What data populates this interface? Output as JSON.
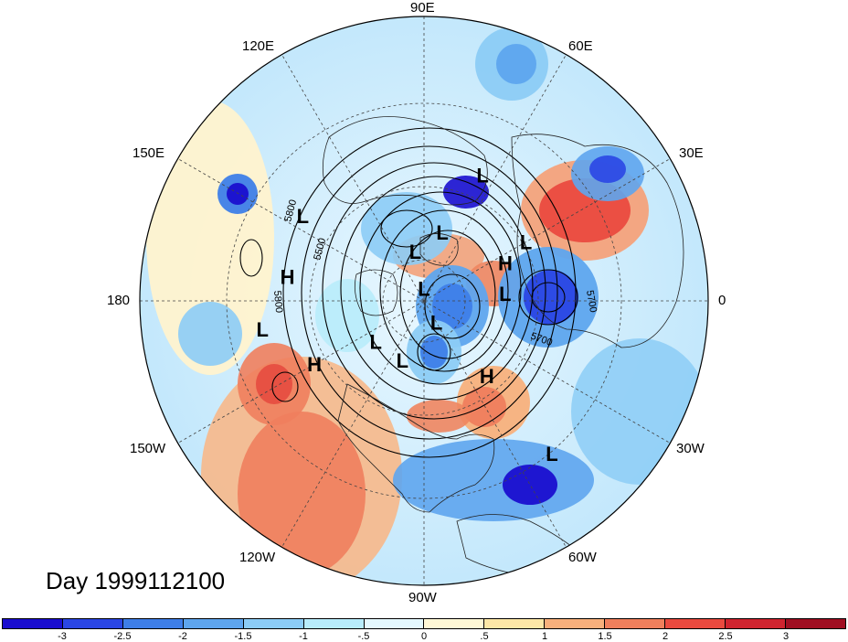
{
  "title": "Day 1999112100",
  "longitude_labels": [
    "90E",
    "60E",
    "30E",
    "0",
    "30W",
    "60W",
    "90W",
    "120W",
    "150W",
    "180",
    "150E",
    "120E"
  ],
  "contour_labels": [
    "5800",
    "5500",
    "5800",
    "5700",
    "5700"
  ],
  "centers": [
    {
      "type": "L",
      "lon": 65,
      "lat": 38
    },
    {
      "type": "L",
      "lon": 30,
      "lat": 45
    },
    {
      "type": "H",
      "lon": 25,
      "lat": 55
    },
    {
      "type": "L",
      "lon": 5,
      "lat": 58
    },
    {
      "type": "L",
      "lon": 75,
      "lat": 62
    },
    {
      "type": "L",
      "lon": 100,
      "lat": 70
    },
    {
      "type": "L",
      "lon": 90,
      "lat": 85
    },
    {
      "type": "L",
      "lon": -60,
      "lat": 80
    },
    {
      "type": "L",
      "lon": -110,
      "lat": 65
    },
    {
      "type": "L",
      "lon": -170,
      "lat": 30
    },
    {
      "type": "L",
      "lon": 145,
      "lat": 35
    },
    {
      "type": "H",
      "lon": 170,
      "lat": 38
    },
    {
      "type": "H",
      "lon": -150,
      "lat": 42
    },
    {
      "type": "H",
      "lon": -50,
      "lat": 52
    },
    {
      "type": "L",
      "lon": -50,
      "lat": 20
    },
    {
      "type": "L",
      "lon": -140,
      "lat": 65
    }
  ],
  "colorbar": {
    "colors": [
      "#1a0ecf",
      "#2a46e4",
      "#3e7ee8",
      "#5ea5ee",
      "#8cccf6",
      "#b8ecfb",
      "#e4f8fe",
      "#fff8d6",
      "#fde7a7",
      "#f8b07c",
      "#f07f5c",
      "#ea4a3f",
      "#d0242f",
      "#a00f22"
    ],
    "ticks": [
      "-3",
      "-2.5",
      "-2",
      "-1.5",
      "-1",
      "-.5",
      "0",
      ".5",
      "1",
      "1.5",
      "2",
      "2.5",
      "3"
    ]
  },
  "colors": {
    "positive": "#ef6f56",
    "negative": "#3a79e6",
    "neutral": "#f4fbff"
  }
}
